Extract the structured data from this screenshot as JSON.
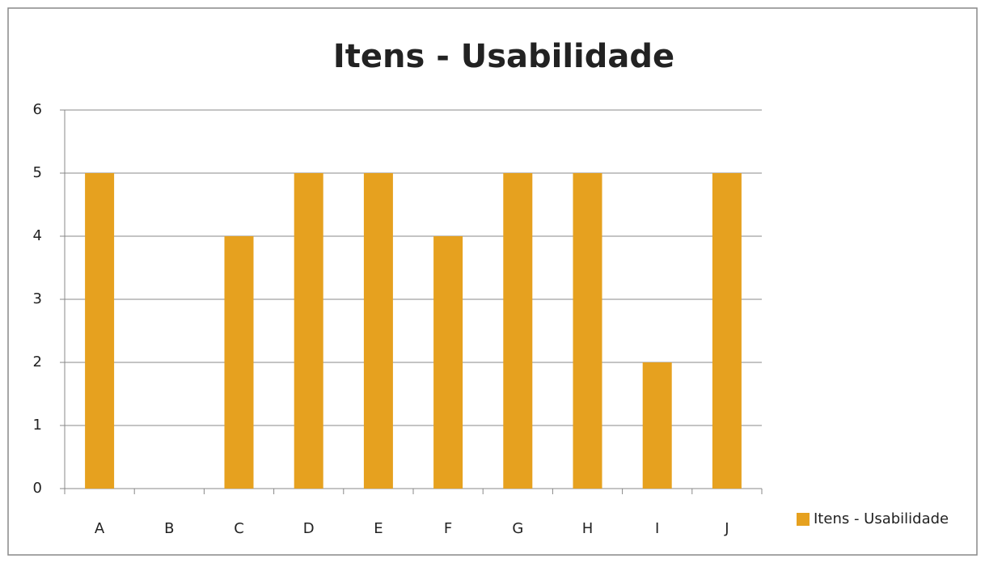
{
  "chart_data": {
    "type": "bar",
    "title": "Itens - Usabilidade",
    "categories": [
      "A",
      "B",
      "C",
      "D",
      "E",
      "F",
      "G",
      "H",
      "I",
      "J"
    ],
    "series": [
      {
        "name": "Itens - Usabilidade",
        "color": "#e6a11f",
        "values": [
          5,
          0,
          4,
          5,
          5,
          4,
          5,
          5,
          2,
          5
        ]
      }
    ],
    "ylim": [
      0,
      6
    ],
    "yticks": [
      0,
      1,
      2,
      3,
      4,
      5,
      6
    ],
    "grid": true,
    "legend": "right"
  }
}
